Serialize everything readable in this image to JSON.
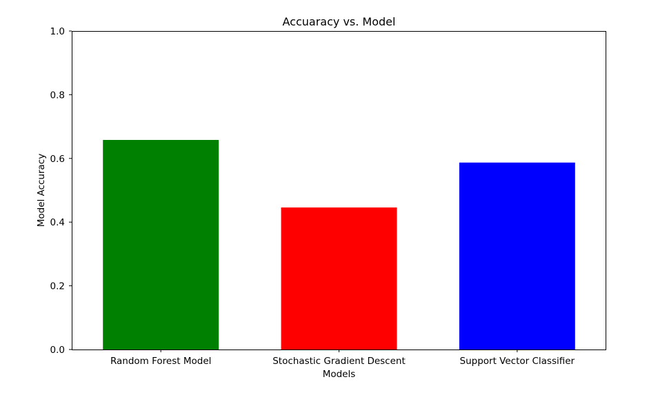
{
  "chart_data": {
    "type": "bar",
    "title": "Accuaracy vs. Model",
    "xlabel": "Models",
    "ylabel": "Model Accuracy",
    "categories": [
      "Random Forest Model",
      "Stochastic Gradient Descent",
      "Support Vector Classifier"
    ],
    "values": [
      0.658,
      0.446,
      0.587
    ],
    "colors": [
      "#008000",
      "#ff0000",
      "#0000ff"
    ],
    "ylim": [
      0,
      1.0
    ],
    "yticks": [
      "0.0",
      "0.2",
      "0.4",
      "0.6",
      "0.8",
      "1.0"
    ],
    "grid": false,
    "legend": "none"
  }
}
